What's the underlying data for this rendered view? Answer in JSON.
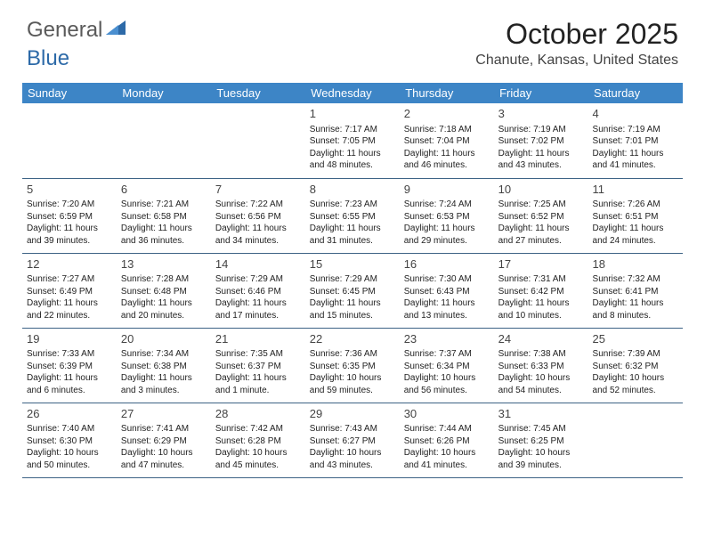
{
  "logo": {
    "text_gray": "General",
    "text_blue": "Blue",
    "icon_color": "#2d6aa8"
  },
  "title": "October 2025",
  "location": "Chanute, Kansas, United States",
  "header_bg": "#3d85c6",
  "header_text_color": "#ffffff",
  "border_color": "#3d6385",
  "weekdays": [
    "Sunday",
    "Monday",
    "Tuesday",
    "Wednesday",
    "Thursday",
    "Friday",
    "Saturday"
  ],
  "weeks": [
    [
      null,
      null,
      null,
      {
        "n": "1",
        "sunrise": "7:17 AM",
        "sunset": "7:05 PM",
        "daylight": "11 hours and 48 minutes."
      },
      {
        "n": "2",
        "sunrise": "7:18 AM",
        "sunset": "7:04 PM",
        "daylight": "11 hours and 46 minutes."
      },
      {
        "n": "3",
        "sunrise": "7:19 AM",
        "sunset": "7:02 PM",
        "daylight": "11 hours and 43 minutes."
      },
      {
        "n": "4",
        "sunrise": "7:19 AM",
        "sunset": "7:01 PM",
        "daylight": "11 hours and 41 minutes."
      }
    ],
    [
      {
        "n": "5",
        "sunrise": "7:20 AM",
        "sunset": "6:59 PM",
        "daylight": "11 hours and 39 minutes."
      },
      {
        "n": "6",
        "sunrise": "7:21 AM",
        "sunset": "6:58 PM",
        "daylight": "11 hours and 36 minutes."
      },
      {
        "n": "7",
        "sunrise": "7:22 AM",
        "sunset": "6:56 PM",
        "daylight": "11 hours and 34 minutes."
      },
      {
        "n": "8",
        "sunrise": "7:23 AM",
        "sunset": "6:55 PM",
        "daylight": "11 hours and 31 minutes."
      },
      {
        "n": "9",
        "sunrise": "7:24 AM",
        "sunset": "6:53 PM",
        "daylight": "11 hours and 29 minutes."
      },
      {
        "n": "10",
        "sunrise": "7:25 AM",
        "sunset": "6:52 PM",
        "daylight": "11 hours and 27 minutes."
      },
      {
        "n": "11",
        "sunrise": "7:26 AM",
        "sunset": "6:51 PM",
        "daylight": "11 hours and 24 minutes."
      }
    ],
    [
      {
        "n": "12",
        "sunrise": "7:27 AM",
        "sunset": "6:49 PM",
        "daylight": "11 hours and 22 minutes."
      },
      {
        "n": "13",
        "sunrise": "7:28 AM",
        "sunset": "6:48 PM",
        "daylight": "11 hours and 20 minutes."
      },
      {
        "n": "14",
        "sunrise": "7:29 AM",
        "sunset": "6:46 PM",
        "daylight": "11 hours and 17 minutes."
      },
      {
        "n": "15",
        "sunrise": "7:29 AM",
        "sunset": "6:45 PM",
        "daylight": "11 hours and 15 minutes."
      },
      {
        "n": "16",
        "sunrise": "7:30 AM",
        "sunset": "6:43 PM",
        "daylight": "11 hours and 13 minutes."
      },
      {
        "n": "17",
        "sunrise": "7:31 AM",
        "sunset": "6:42 PM",
        "daylight": "11 hours and 10 minutes."
      },
      {
        "n": "18",
        "sunrise": "7:32 AM",
        "sunset": "6:41 PM",
        "daylight": "11 hours and 8 minutes."
      }
    ],
    [
      {
        "n": "19",
        "sunrise": "7:33 AM",
        "sunset": "6:39 PM",
        "daylight": "11 hours and 6 minutes."
      },
      {
        "n": "20",
        "sunrise": "7:34 AM",
        "sunset": "6:38 PM",
        "daylight": "11 hours and 3 minutes."
      },
      {
        "n": "21",
        "sunrise": "7:35 AM",
        "sunset": "6:37 PM",
        "daylight": "11 hours and 1 minute."
      },
      {
        "n": "22",
        "sunrise": "7:36 AM",
        "sunset": "6:35 PM",
        "daylight": "10 hours and 59 minutes."
      },
      {
        "n": "23",
        "sunrise": "7:37 AM",
        "sunset": "6:34 PM",
        "daylight": "10 hours and 56 minutes."
      },
      {
        "n": "24",
        "sunrise": "7:38 AM",
        "sunset": "6:33 PM",
        "daylight": "10 hours and 54 minutes."
      },
      {
        "n": "25",
        "sunrise": "7:39 AM",
        "sunset": "6:32 PM",
        "daylight": "10 hours and 52 minutes."
      }
    ],
    [
      {
        "n": "26",
        "sunrise": "7:40 AM",
        "sunset": "6:30 PM",
        "daylight": "10 hours and 50 minutes."
      },
      {
        "n": "27",
        "sunrise": "7:41 AM",
        "sunset": "6:29 PM",
        "daylight": "10 hours and 47 minutes."
      },
      {
        "n": "28",
        "sunrise": "7:42 AM",
        "sunset": "6:28 PM",
        "daylight": "10 hours and 45 minutes."
      },
      {
        "n": "29",
        "sunrise": "7:43 AM",
        "sunset": "6:27 PM",
        "daylight": "10 hours and 43 minutes."
      },
      {
        "n": "30",
        "sunrise": "7:44 AM",
        "sunset": "6:26 PM",
        "daylight": "10 hours and 41 minutes."
      },
      {
        "n": "31",
        "sunrise": "7:45 AM",
        "sunset": "6:25 PM",
        "daylight": "10 hours and 39 minutes."
      },
      null
    ]
  ],
  "labels": {
    "sunrise": "Sunrise: ",
    "sunset": "Sunset: ",
    "daylight": "Daylight: "
  }
}
